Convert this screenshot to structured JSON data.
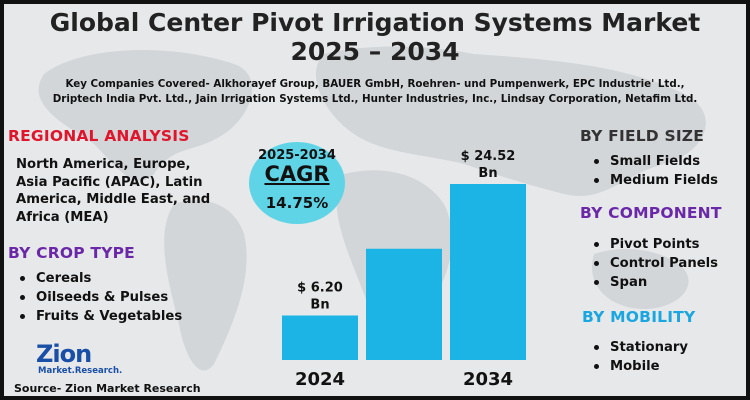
{
  "title": {
    "line1": "Global Center Pivot Irrigation Systems Market",
    "line2": "2025 – 2034"
  },
  "companies": {
    "line1": "Key Companies Covered- Alkhorayef Group, BAUER GmbH, Roehren- und Pumpenwerk, EPC Industrie' Ltd.,",
    "line2": "Driptech India Pvt. Ltd., Jain Irrigation Systems Ltd., Hunter Industries, Inc., Lindsay Corporation, Netafim Ltd."
  },
  "regional": {
    "heading": "REGIONAL ANALYSIS",
    "lines": [
      "North America, Europe,",
      "Asia Pacific (APAC), Latin",
      "America, Middle East, and",
      "Africa (MEA)"
    ]
  },
  "crop_type": {
    "heading": "BY CROP TYPE",
    "items": [
      "Cereals",
      "Oilseeds & Pulses",
      "Fruits & Vegetables"
    ]
  },
  "field_size": {
    "heading": "BY FIELD SIZE",
    "items": [
      "Small Fields",
      "Medium Fields"
    ]
  },
  "component": {
    "heading": "BY COMPONENT",
    "items": [
      "Pivot Points",
      "Control Panels",
      "Span"
    ]
  },
  "mobility": {
    "heading": "BY MOBILITY",
    "items": [
      "Stationary",
      "Mobile"
    ]
  },
  "cagr": {
    "range": "2025-2034",
    "label": "CAGR",
    "value": "14.75%"
  },
  "logo": {
    "name": "Zion",
    "sub": "Market.Research."
  },
  "source": "Source- Zion Market Research",
  "colors": {
    "bar": "#1bb4e4",
    "cagr_circle": "#5fd4e6",
    "regional_heading": "#e0142a",
    "crop_heading": "#6a28a8",
    "component_heading": "#6a28a8",
    "mobility_heading": "#1aa6e0"
  },
  "chart_data": {
    "type": "bar",
    "categories": [
      "2024",
      "",
      "2034"
    ],
    "values": [
      6.2,
      15.5,
      24.52
    ],
    "data_labels": [
      "$ 6.20\nBn",
      "",
      "$ 24.52\nBn"
    ],
    "xlabels": [
      "2024",
      "",
      "2034"
    ],
    "unit": "Bn USD",
    "ylim": [
      0,
      24.52
    ]
  }
}
